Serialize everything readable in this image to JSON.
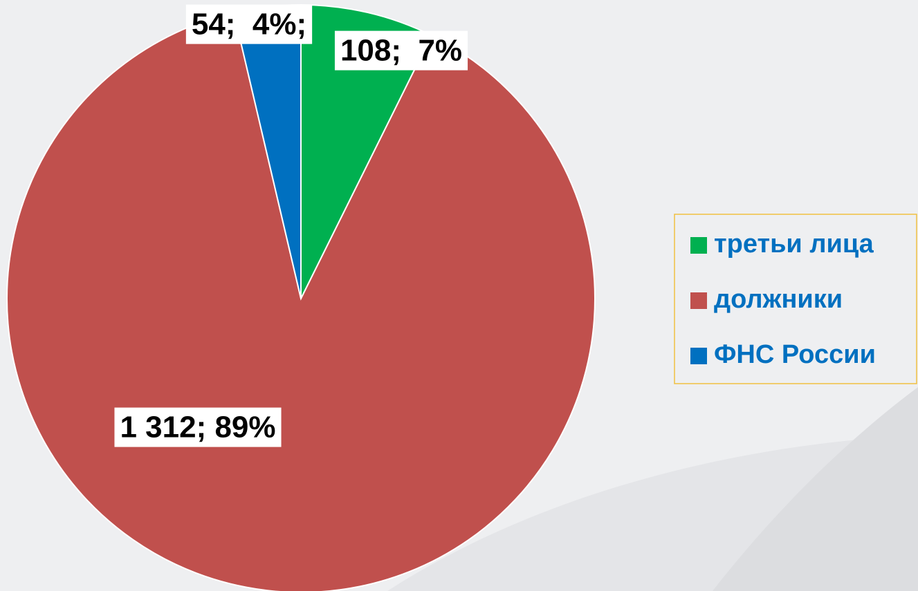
{
  "chart_data": {
    "type": "pie",
    "categories": [
      "третьи лица",
      "должники",
      "ФНС России"
    ],
    "values": [
      108,
      1312,
      54
    ],
    "value_labels": [
      "108;  7%",
      "1 312; 89%",
      "54;  4%;"
    ],
    "colors": [
      "#00b050",
      "#c0504d",
      "#0070c0"
    ],
    "legend": "right"
  }
}
